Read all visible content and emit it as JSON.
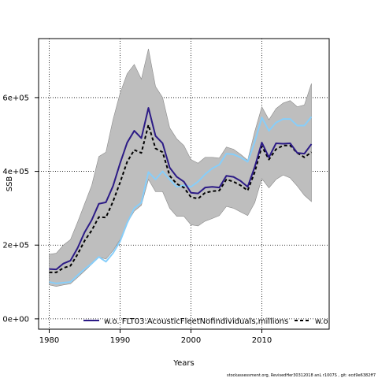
{
  "chart_data": {
    "type": "line",
    "xlabel": "Years",
    "ylabel": "SSB",
    "xlim": [
      1978.5,
      2019.5
    ],
    "ylim": [
      -28000,
      760000
    ],
    "x_ticks": [
      1980,
      1990,
      2000,
      2010
    ],
    "y_ticks": [
      0,
      200000,
      400000,
      600000
    ],
    "y_tick_labels": [
      "0e+00",
      "2e+05",
      "4e+05",
      "6e+05"
    ],
    "grid": true,
    "legend_position": "bottom",
    "x": [
      1980,
      1981,
      1982,
      1983,
      1984,
      1985,
      1986,
      1987,
      1988,
      1989,
      1990,
      1991,
      1992,
      1993,
      1994,
      1995,
      1996,
      1997,
      1998,
      1999,
      2000,
      2001,
      2002,
      2003,
      2004,
      2005,
      2006,
      2007,
      2008,
      2009,
      2010,
      2011,
      2012,
      2013,
      2014,
      2015,
      2016,
      2017
    ],
    "band": {
      "color": "#bebebe",
      "upper": [
        175000,
        178000,
        200000,
        215000,
        262000,
        312000,
        362000,
        440000,
        452000,
        540000,
        612000,
        665000,
        690000,
        650000,
        732000,
        630000,
        600000,
        518000,
        488000,
        470000,
        432000,
        422000,
        438000,
        438000,
        436000,
        466000,
        460000,
        446000,
        430000,
        508000,
        575000,
        540000,
        570000,
        585000,
        592000,
        575000,
        580000,
        638000
      ],
      "lower": [
        92000,
        88000,
        92000,
        95000,
        112000,
        130000,
        148000,
        168000,
        162000,
        185000,
        215000,
        260000,
        292000,
        308000,
        378000,
        345000,
        345000,
        300000,
        278000,
        278000,
        255000,
        252000,
        265000,
        272000,
        280000,
        305000,
        300000,
        290000,
        280000,
        315000,
        380000,
        355000,
        378000,
        390000,
        382000,
        360000,
        335000,
        318000
      ]
    },
    "series": [
      {
        "name": "w.o. FLT03:AcousticFleetNofindividuals,millions",
        "color": "#2c1b86",
        "style": "solid",
        "values": [
          135000,
          134000,
          150000,
          158000,
          192000,
          235000,
          268000,
          312000,
          316000,
          360000,
          422000,
          478000,
          510000,
          490000,
          572000,
          496000,
          476000,
          410000,
          385000,
          372000,
          342000,
          340000,
          356000,
          358000,
          356000,
          388000,
          385000,
          374000,
          358000,
          412000,
          478000,
          438000,
          476000,
          475000,
          476000,
          450000,
          448000,
          474000
        ]
      },
      {
        "name": "w.o.",
        "color": "#000000",
        "style": "dashed",
        "values": [
          126000,
          126000,
          138000,
          144000,
          175000,
          212000,
          240000,
          276000,
          275000,
          318000,
          370000,
          426000,
          458000,
          450000,
          526000,
          462000,
          452000,
          388000,
          366000,
          356000,
          330000,
          326000,
          342000,
          346000,
          348000,
          378000,
          372000,
          362000,
          348000,
          398000,
          468000,
          432000,
          460000,
          470000,
          470000,
          450000,
          438000,
          452000
        ]
      },
      {
        "name": "",
        "color": "#87cefa",
        "style": "solid",
        "values": [
          100000,
          96000,
          98000,
          100000,
          118000,
          135000,
          150000,
          168000,
          155000,
          178000,
          210000,
          260000,
          300000,
          315000,
          398000,
          378000,
          400000,
          378000,
          358000,
          362000,
          358000,
          372000,
          392000,
          408000,
          418000,
          448000,
          446000,
          438000,
          426000,
          480000,
          546000,
          510000,
          532000,
          542000,
          542000,
          524000,
          524000,
          548000
        ]
      }
    ]
  },
  "footer": {
    "text": "stockassessment.org, RevisedHer30312018 anL r1007S , git: ecd9e6382ff7"
  }
}
